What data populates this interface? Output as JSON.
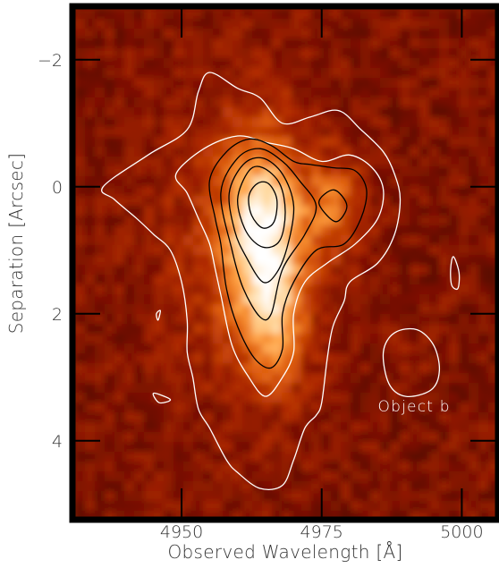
{
  "chart_data": {
    "type": "heatmap",
    "xlabel": "Observed Wavelength [Å]",
    "ylabel": "Separation [Arcsec]",
    "xlim": [
      4931,
      5006
    ],
    "ylim": [
      5.2,
      -2.8
    ],
    "xticks": [
      4950,
      4975,
      5000
    ],
    "xtick_labels": [
      "4950",
      "4975",
      "5000"
    ],
    "yticks": [
      -2,
      0,
      2,
      4
    ],
    "ytick_labels": [
      "−2",
      "0",
      "2",
      "4"
    ],
    "colormap": [
      "#000000",
      "#3a0000",
      "#7a1000",
      "#b02a00",
      "#e06010",
      "#ffa040",
      "#ffd9a0",
      "#ffffff"
    ],
    "frame_color": "#000000",
    "emission_peak": {
      "x": 4964.5,
      "y": 0.25
    },
    "secondary_peak": {
      "x": 4977,
      "y": 0.3
    },
    "contours": [
      {
        "level": "outer",
        "color": "#ffffff",
        "points": [
          [
            4936,
            0
          ],
          [
            4944,
            -0.5
          ],
          [
            4951,
            -0.9
          ],
          [
            4953,
            -1.5
          ],
          [
            4955,
            -1.8
          ],
          [
            4960,
            -1.55
          ],
          [
            4964,
            -1.4
          ],
          [
            4968,
            -1.0
          ],
          [
            4973,
            -1.1
          ],
          [
            4978,
            -1.2
          ],
          [
            4982,
            -0.9
          ],
          [
            4986,
            -0.55
          ],
          [
            4988,
            -0.2
          ],
          [
            4989,
            0.2
          ],
          [
            4988,
            0.75
          ],
          [
            4985,
            1.2
          ],
          [
            4980,
            1.5
          ],
          [
            4979,
            1.8
          ],
          [
            4977,
            2.2
          ],
          [
            4976,
            2.7
          ],
          [
            4975,
            3.4
          ],
          [
            4974,
            3.6
          ],
          [
            4972,
            3.8
          ],
          [
            4970,
            4.3
          ],
          [
            4968,
            4.7
          ],
          [
            4964,
            4.75
          ],
          [
            4960,
            4.5
          ],
          [
            4958,
            4.3
          ],
          [
            4955,
            3.8
          ],
          [
            4953,
            3.5
          ],
          [
            4952,
            3.0
          ],
          [
            4951,
            2.6
          ],
          [
            4951,
            2.1
          ],
          [
            4950,
            1.5
          ],
          [
            4948,
            1.0
          ],
          [
            4945,
            0.75
          ],
          [
            4942,
            0.5
          ],
          [
            4938,
            0.2
          ],
          [
            4936,
            0
          ]
        ]
      },
      {
        "level": "second",
        "color": "#ffffff",
        "points": [
          [
            4949,
            -0.2
          ],
          [
            4954,
            -0.6
          ],
          [
            4960,
            -0.8
          ],
          [
            4965,
            -0.7
          ],
          [
            4970,
            -0.6
          ],
          [
            4975,
            -0.4
          ],
          [
            4980,
            -0.5
          ],
          [
            4984,
            -0.3
          ],
          [
            4986,
            0.05
          ],
          [
            4985,
            0.5
          ],
          [
            4981,
            0.9
          ],
          [
            4976,
            1.2
          ],
          [
            4972,
            1.5
          ],
          [
            4970,
            2.0
          ],
          [
            4970,
            2.6
          ],
          [
            4968,
            3.0
          ],
          [
            4965,
            3.3
          ],
          [
            4962,
            3.0
          ],
          [
            4959,
            2.5
          ],
          [
            4957,
            1.7
          ],
          [
            4956,
            1.3
          ],
          [
            4955,
            0.9
          ],
          [
            4953,
            0.5
          ],
          [
            4951,
            0.1
          ],
          [
            4949,
            -0.2
          ]
        ]
      },
      {
        "level": "third",
        "color": "#000000",
        "points": [
          [
            4955,
            -0.1
          ],
          [
            4958,
            -0.55
          ],
          [
            4962,
            -0.75
          ],
          [
            4966,
            -0.65
          ],
          [
            4970,
            -0.4
          ],
          [
            4973,
            -0.35
          ],
          [
            4977,
            -0.3
          ],
          [
            4981,
            -0.25
          ],
          [
            4983,
            0.05
          ],
          [
            4982,
            0.5
          ],
          [
            4979,
            0.9
          ],
          [
            4974,
            1.0
          ],
          [
            4970,
            1.5
          ],
          [
            4968,
            2.0
          ],
          [
            4968,
            2.55
          ],
          [
            4966,
            2.85
          ],
          [
            4963,
            2.7
          ],
          [
            4960,
            2.2
          ],
          [
            4958,
            1.6
          ],
          [
            4957,
            0.9
          ],
          [
            4956,
            0.5
          ],
          [
            4955,
            -0.1
          ]
        ]
      },
      {
        "level": "fourth",
        "color": "#000000",
        "points": [
          [
            4957,
            0.1
          ],
          [
            4960,
            -0.45
          ],
          [
            4964,
            -0.6
          ],
          [
            4968,
            -0.4
          ],
          [
            4971,
            -0.1
          ],
          [
            4974,
            0.3
          ],
          [
            4972,
            0.75
          ],
          [
            4968,
            1.3
          ],
          [
            4966,
            2.0
          ],
          [
            4964,
            2.05
          ],
          [
            4961,
            1.6
          ],
          [
            4959,
            1.0
          ],
          [
            4957,
            0.1
          ]
        ]
      },
      {
        "level": "fifth",
        "color": "#000000",
        "points": [
          [
            4958.5,
            0.1
          ],
          [
            4961,
            -0.35
          ],
          [
            4964.5,
            -0.45
          ],
          [
            4968,
            -0.2
          ],
          [
            4970,
            0.3
          ],
          [
            4969,
            0.9
          ],
          [
            4967,
            1.35
          ],
          [
            4964.5,
            1.5
          ],
          [
            4961.5,
            1.1
          ],
          [
            4959.5,
            0.7
          ],
          [
            4958.5,
            0.1
          ]
        ]
      },
      {
        "level": "sixth",
        "color": "#000000",
        "points": [
          [
            4960,
            0.2
          ],
          [
            4962,
            -0.25
          ],
          [
            4964.5,
            -0.3
          ],
          [
            4967.5,
            -0.05
          ],
          [
            4968.5,
            0.4
          ],
          [
            4967.5,
            0.85
          ],
          [
            4964.5,
            0.95
          ],
          [
            4961.5,
            0.7
          ],
          [
            4960,
            0.2
          ]
        ]
      },
      {
        "level": "peak",
        "color": "#000000",
        "points": [
          [
            4962,
            0.15
          ],
          [
            4963.5,
            -0.05
          ],
          [
            4965.5,
            -0.05
          ],
          [
            4967,
            0.2
          ],
          [
            4966.5,
            0.55
          ],
          [
            4964.5,
            0.65
          ],
          [
            4962.5,
            0.45
          ],
          [
            4962,
            0.15
          ]
        ]
      },
      {
        "level": "secondary",
        "color": "#000000",
        "points": [
          [
            4974.5,
            0.25
          ],
          [
            4977.2,
            0.05
          ],
          [
            4979.5,
            0.3
          ],
          [
            4977.5,
            0.55
          ],
          [
            4974.5,
            0.25
          ]
        ]
      },
      {
        "level": "object-b",
        "color": "#ffffff",
        "points": [
          [
            4986,
            2.6
          ],
          [
            4988,
            2.3
          ],
          [
            4992,
            2.25
          ],
          [
            4995,
            2.5
          ],
          [
            4996,
            2.9
          ],
          [
            4994.5,
            3.2
          ],
          [
            4990,
            3.3
          ],
          [
            4987,
            3.1
          ],
          [
            4986,
            2.6
          ]
        ]
      },
      {
        "level": "speck-1",
        "color": "#ffffff",
        "points": [
          [
            4998,
            1.3
          ],
          [
            4998.5,
            1.1
          ],
          [
            4999.5,
            1.35
          ],
          [
            4999.3,
            1.6
          ],
          [
            4998.2,
            1.55
          ],
          [
            4998,
            1.3
          ]
        ]
      },
      {
        "level": "speck-2",
        "color": "#ffffff",
        "points": [
          [
            4945.5,
            2.0
          ],
          [
            4946.2,
            1.95
          ],
          [
            4945.8,
            2.1
          ],
          [
            4945.5,
            2.0
          ]
        ]
      },
      {
        "level": "speck-3",
        "color": "#ffffff",
        "points": [
          [
            4945,
            3.25
          ],
          [
            4948,
            3.35
          ],
          [
            4946,
            3.4
          ],
          [
            4945,
            3.25
          ]
        ]
      }
    ],
    "annotations": [
      {
        "text": "Object b",
        "x": 4991.5,
        "y": 3.45
      }
    ]
  }
}
